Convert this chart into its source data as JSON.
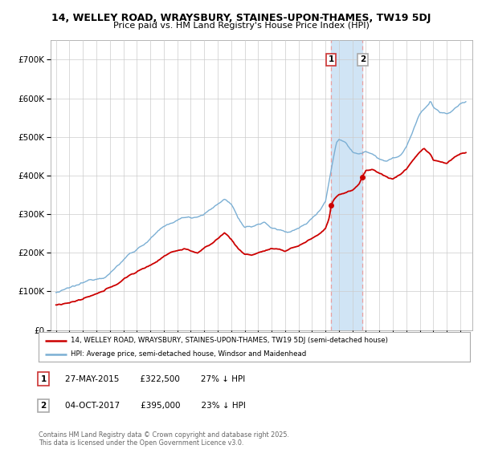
{
  "title_line1": "14, WELLEY ROAD, WRAYSBURY, STAINES-UPON-THAMES, TW19 5DJ",
  "title_line2": "Price paid vs. HM Land Registry's House Price Index (HPI)",
  "ylim": [
    0,
    750000
  ],
  "yticks": [
    0,
    100000,
    200000,
    300000,
    400000,
    500000,
    600000,
    700000
  ],
  "ytick_labels": [
    "£0",
    "£100K",
    "£200K",
    "£300K",
    "£400K",
    "£500K",
    "£600K",
    "£700K"
  ],
  "hpi_color": "#7bafd4",
  "price_color": "#cc0000",
  "marker1_date": 2015.41,
  "marker2_date": 2017.76,
  "marker1_price": 322500,
  "marker2_price": 395000,
  "legend_line1": "14, WELLEY ROAD, WRAYSBURY, STAINES-UPON-THAMES, TW19 5DJ (semi-detached house)",
  "legend_line2": "HPI: Average price, semi-detached house, Windsor and Maidenhead",
  "annotation1_text": "27-MAY-2015        £322,500        27% ↓ HPI",
  "annotation2_text": "04-OCT-2017        £395,000        23% ↓ HPI",
  "footer": "Contains HM Land Registry data © Crown copyright and database right 2025.\nThis data is licensed under the Open Government Licence v3.0.",
  "background_color": "#ffffff",
  "grid_color": "#cccccc",
  "vline_color": "#e8a0a0",
  "shade_color": "#d0e4f5"
}
